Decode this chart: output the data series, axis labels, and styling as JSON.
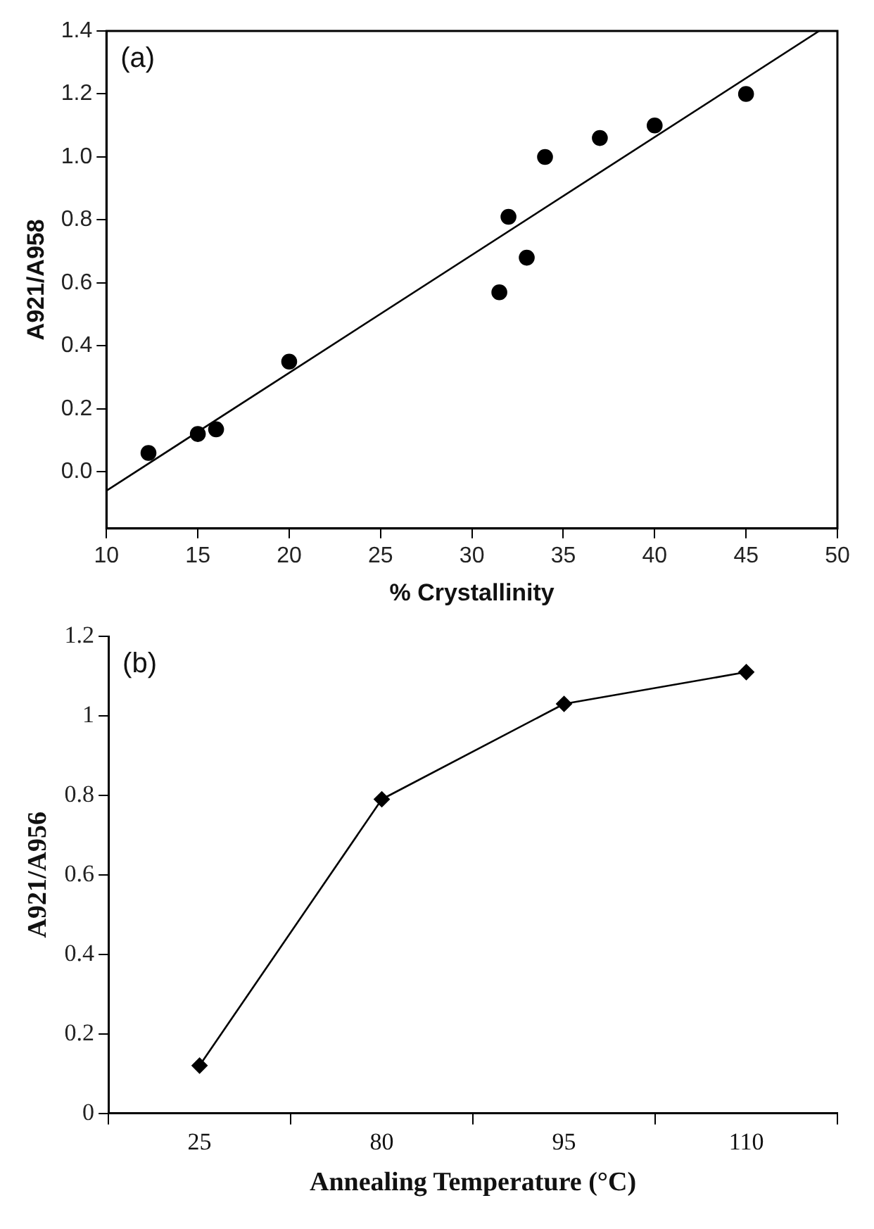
{
  "chart_data": [
    {
      "type": "scatter",
      "xlabel": "% Crystallinity",
      "ylabel": "A921/A958",
      "annotations": [
        "(a)"
      ],
      "marker": "circle",
      "grid": false,
      "xlim": [
        10,
        50
      ],
      "xticks": [
        10,
        15,
        20,
        25,
        30,
        35,
        40,
        45,
        50
      ],
      "ylim": [
        -0.18,
        1.4
      ],
      "yticks": [
        {
          "value": 0,
          "label": "0.0"
        },
        0.2,
        0.4,
        0.6,
        0.8,
        {
          "value": 1,
          "label": "1.0"
        },
        1.2,
        1.4
      ],
      "series": [
        {
          "color": "#000000",
          "x": [
            12.3,
            15,
            16,
            20,
            31.5,
            32,
            33,
            34,
            37,
            40,
            45
          ],
          "values": [
            0.06,
            0.12,
            0.135,
            0.35,
            0.57,
            0.81,
            0.68,
            1.0,
            1.06,
            1.1,
            1.2
          ]
        },
        {
          "type": "line",
          "marker": "none",
          "color": "#000000",
          "x": [
            10,
            49
          ],
          "values": [
            -0.06,
            1.4
          ]
        }
      ]
    },
    {
      "type": "line",
      "xlabel": "Annealing Temperature (°C)",
      "ylabel": "A921/A956",
      "annotations": [
        "(b)"
      ],
      "marker": "diamond",
      "grid": false,
      "categories": [
        "25",
        "80",
        "95",
        "110"
      ],
      "ylim": [
        0,
        1.2
      ],
      "yticks": [
        0,
        0.2,
        0.4,
        0.6,
        0.8,
        1,
        1.2
      ],
      "series": [
        {
          "color": "#000000",
          "values": [
            0.12,
            0.79,
            1.03,
            1.11
          ]
        }
      ]
    }
  ]
}
